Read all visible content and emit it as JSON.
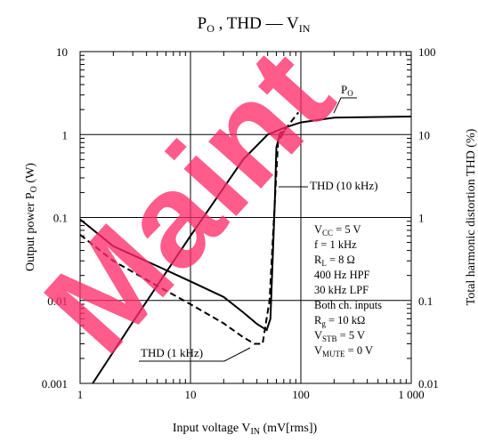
{
  "chart_data": {
    "type": "line",
    "title_main": "P",
    "title_main_sub": "O",
    "title_rest": " , THD — V",
    "title_rest_sub": "IN",
    "xlabel_main": "Input voltage  V",
    "xlabel_sub": "IN",
    "xlabel_unit": " (mV[rms])",
    "ylabel_left_main": "Output power  P",
    "ylabel_left_sub": "O",
    "ylabel_left_unit": "  (W)",
    "ylabel_right": "Total harmonic distortion  THD  (%)",
    "x_scale": "log",
    "xlim": [
      1,
      1000
    ],
    "y_left_scale": "log",
    "y_left_lim": [
      0.001,
      10
    ],
    "y_right_scale": "log",
    "y_right_lim": [
      0.01,
      100
    ],
    "grid": true,
    "x_ticks": [
      {
        "value": 1,
        "label": "1"
      },
      {
        "value": 10,
        "label": "10"
      },
      {
        "value": 100,
        "label": "100"
      },
      {
        "value": 1000,
        "label": "1 000"
      }
    ],
    "y_left_ticks": [
      {
        "value": 0.001,
        "label": "0.001"
      },
      {
        "value": 0.01,
        "label": "0.01"
      },
      {
        "value": 0.1,
        "label": "0.1"
      },
      {
        "value": 1,
        "label": "1"
      },
      {
        "value": 10,
        "label": "10"
      }
    ],
    "y_right_ticks": [
      {
        "value": 0.01,
        "label": "0.01"
      },
      {
        "value": 0.1,
        "label": "0.1"
      },
      {
        "value": 1,
        "label": "1"
      },
      {
        "value": 10,
        "label": "10"
      },
      {
        "value": 100,
        "label": "100"
      }
    ],
    "series": [
      {
        "label_main": "P",
        "label_sub": "O",
        "axis": "left",
        "style": "solid",
        "points": [
          [
            1.3,
            0.001
          ],
          [
            3,
            0.0055
          ],
          [
            10,
            0.06
          ],
          [
            30,
            0.5
          ],
          [
            50,
            1.0
          ],
          [
            70,
            1.2
          ],
          [
            100,
            1.4
          ],
          [
            200,
            1.6
          ],
          [
            1000,
            1.65
          ]
        ]
      },
      {
        "label": "THD (10 kHz)",
        "axis": "right",
        "style": "solid",
        "points": [
          [
            1,
            0.95
          ],
          [
            2,
            0.45
          ],
          [
            5,
            0.26
          ],
          [
            10,
            0.17
          ],
          [
            20,
            0.11
          ],
          [
            30,
            0.072
          ],
          [
            40,
            0.052
          ],
          [
            49,
            0.044
          ],
          [
            53,
            0.06
          ],
          [
            58,
            1.5
          ],
          [
            60,
            7
          ],
          [
            65,
            10.5
          ],
          [
            72,
            11
          ]
        ]
      },
      {
        "label": "THD (1 kHz)",
        "axis": "right",
        "style": "dashed",
        "points": [
          [
            1,
            0.62
          ],
          [
            2,
            0.3
          ],
          [
            5,
            0.15
          ],
          [
            10,
            0.09
          ],
          [
            20,
            0.053
          ],
          [
            30,
            0.036
          ],
          [
            38,
            0.03
          ],
          [
            45,
            0.03
          ],
          [
            52,
            0.1
          ],
          [
            62,
            8
          ],
          [
            72,
            11.5
          ],
          [
            95,
            18.5
          ]
        ]
      }
    ],
    "conditions": [
      {
        "main": "V",
        "sub": "CC",
        "rest": " = 5 V"
      },
      {
        "main": "f = 1 kHz",
        "sub": "",
        "rest": ""
      },
      {
        "main": "R",
        "sub": "L",
        "rest": " = 8 Ω"
      },
      {
        "main": "400 Hz HPF",
        "sub": "",
        "rest": ""
      },
      {
        "main": "30 kHz LPF",
        "sub": "",
        "rest": ""
      },
      {
        "main": "Both ch. inputs",
        "sub": "",
        "rest": ""
      },
      {
        "main": "R",
        "sub": "g",
        "rest": " = 10 kΩ"
      },
      {
        "main": "V",
        "sub": "STB",
        "rest": " = 5 V"
      },
      {
        "main": "V",
        "sub": "MUTE",
        "rest": " = 0 V"
      }
    ]
  }
}
